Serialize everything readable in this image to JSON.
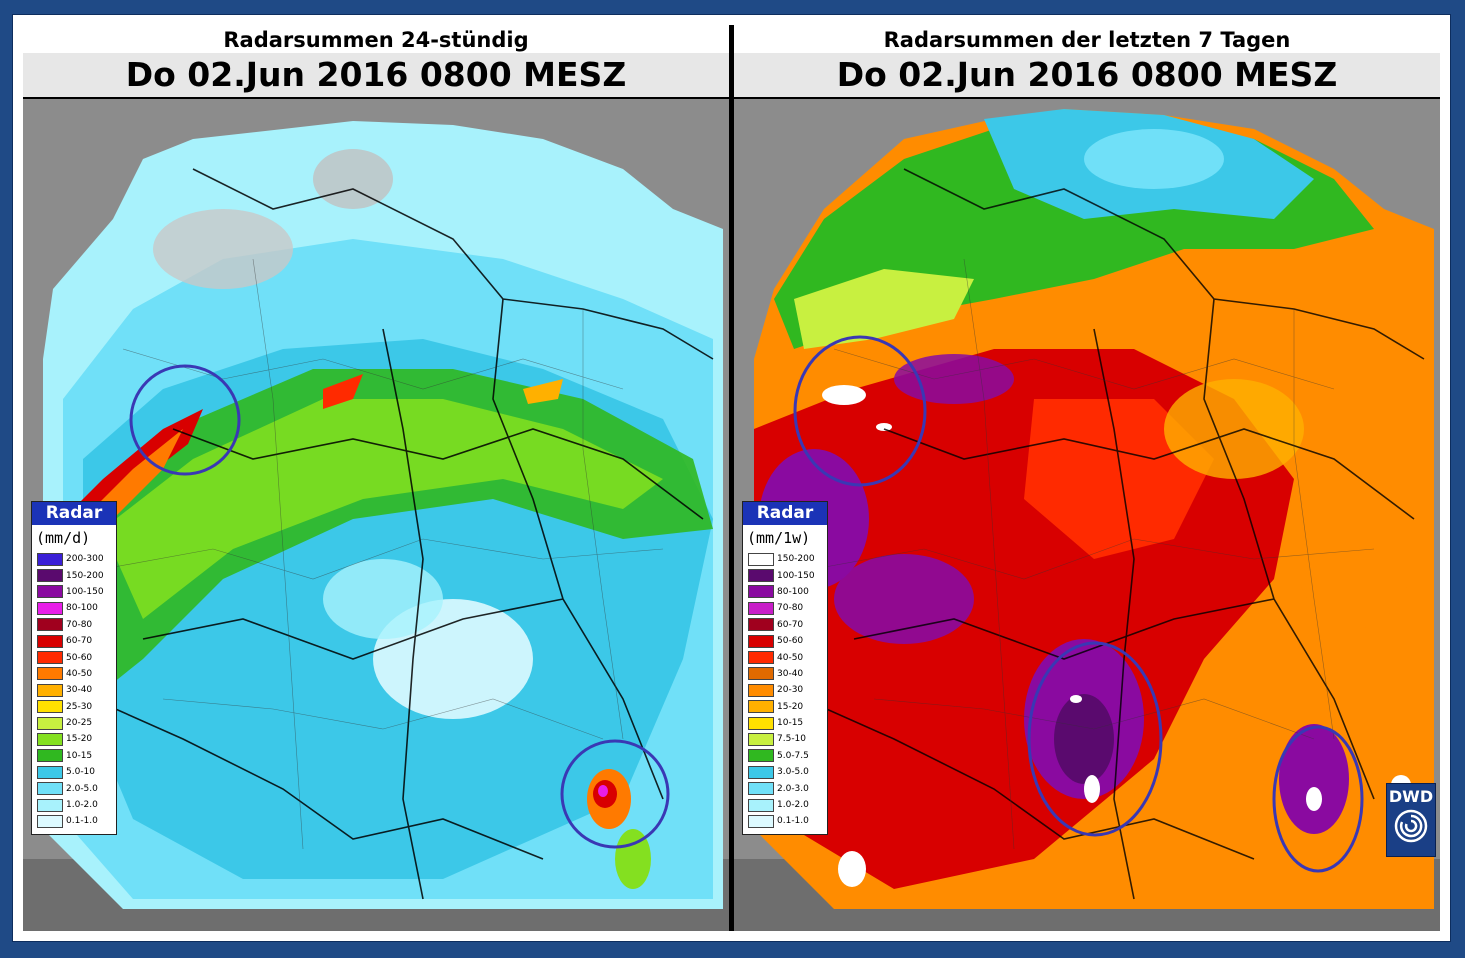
{
  "panels": [
    {
      "title": "Radarsummen 24-stündig",
      "datetime": "Do 02.Jun 2016 0800 MESZ",
      "legend": {
        "title": "Radar",
        "unit": "(mm/d)",
        "items": [
          {
            "label": "200-300",
            "color": "#3a1fd6"
          },
          {
            "label": "150-200",
            "color": "#5a0a6e"
          },
          {
            "label": "100-150",
            "color": "#8a0aa0"
          },
          {
            "label": "80-100",
            "color": "#e81ee8"
          },
          {
            "label": "70-80",
            "color": "#a0001e"
          },
          {
            "label": "60-70",
            "color": "#d80000"
          },
          {
            "label": "50-60",
            "color": "#ff2a00"
          },
          {
            "label": "40-50",
            "color": "#ff7a00"
          },
          {
            "label": "30-40",
            "color": "#ffb000"
          },
          {
            "label": "25-30",
            "color": "#ffe000"
          },
          {
            "label": "20-25",
            "color": "#c8f040"
          },
          {
            "label": "15-20",
            "color": "#84e020"
          },
          {
            "label": "10-15",
            "color": "#30b820"
          },
          {
            "label": "5.0-10",
            "color": "#3cc8e8"
          },
          {
            "label": "2.0-5.0",
            "color": "#70e0f8"
          },
          {
            "label": "1.0-2.0",
            "color": "#a8f2fc"
          },
          {
            "label": "0.1-1.0",
            "color": "#ddfaff"
          }
        ]
      }
    },
    {
      "title": "Radarsummen der letzten 7 Tagen",
      "datetime": "Do 02.Jun 2016 0800 MESZ",
      "legend": {
        "title": "Radar",
        "unit": "(mm/1w)",
        "items": [
          {
            "label": "150-200",
            "color": "#ffffff"
          },
          {
            "label": "100-150",
            "color": "#5a0a6e"
          },
          {
            "label": "80-100",
            "color": "#8a0aa0"
          },
          {
            "label": "70-80",
            "color": "#c81ec8"
          },
          {
            "label": "60-70",
            "color": "#a0001e"
          },
          {
            "label": "50-60",
            "color": "#d80000"
          },
          {
            "label": "40-50",
            "color": "#ff2a00"
          },
          {
            "label": "30-40",
            "color": "#e06a00"
          },
          {
            "label": "20-30",
            "color": "#ff8c00"
          },
          {
            "label": "15-20",
            "color": "#ffb000"
          },
          {
            "label": "10-15",
            "color": "#ffe000"
          },
          {
            "label": "7.5-10",
            "color": "#c8f040"
          },
          {
            "label": "5.0-7.5",
            "color": "#30b820"
          },
          {
            "label": "3.0-5.0",
            "color": "#3cc8e8"
          },
          {
            "label": "2.0-3.0",
            "color": "#70e0f8"
          },
          {
            "label": "1.0-2.0",
            "color": "#a8f2fc"
          },
          {
            "label": "0.1-1.0",
            "color": "#ddfaff"
          }
        ]
      }
    }
  ],
  "logo": {
    "text": "DWD"
  }
}
